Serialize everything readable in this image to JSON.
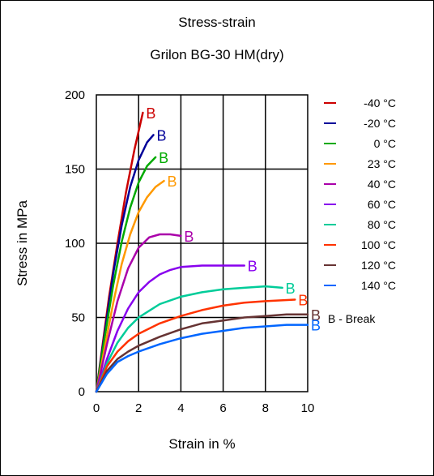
{
  "chart_data": {
    "type": "line",
    "title": "Stress-strain",
    "subtitle": "Grilon BG-30 HM(dry)",
    "xlabel": "Strain in %",
    "ylabel": "Stress in MPa",
    "xlim": [
      0,
      10
    ],
    "ylim": [
      0,
      200
    ],
    "xticks": [
      0,
      2,
      4,
      6,
      8,
      10
    ],
    "yticks": [
      0,
      50,
      100,
      150,
      200
    ],
    "grid": true,
    "legend_position": "right",
    "break_marker": "B",
    "break_note": "B - Break",
    "series": [
      {
        "name": "-40 °C",
        "color": "#cc0000",
        "x": [
          0,
          0.3,
          0.6,
          1.0,
          1.4,
          1.8,
          2.2
        ],
        "y": [
          0,
          32,
          64,
          100,
          134,
          163,
          188
        ]
      },
      {
        "name": "-20 °C",
        "color": "#000099",
        "x": [
          0,
          0.4,
          0.8,
          1.2,
          1.6,
          2.0,
          2.4,
          2.7
        ],
        "y": [
          0,
          40,
          80,
          112,
          138,
          156,
          168,
          173
        ]
      },
      {
        "name": "0 °C",
        "color": "#00aa00",
        "x": [
          0,
          0.4,
          0.8,
          1.2,
          1.6,
          2.0,
          2.4,
          2.8
        ],
        "y": [
          0,
          37,
          72,
          101,
          124,
          141,
          152,
          158
        ]
      },
      {
        "name": "23 °C",
        "color": "#ff9900",
        "x": [
          0,
          0.4,
          0.8,
          1.2,
          1.6,
          2.0,
          2.4,
          2.8,
          3.2
        ],
        "y": [
          0,
          30,
          60,
          86,
          106,
          121,
          131,
          138,
          142
        ]
      },
      {
        "name": "40 °C",
        "color": "#aa00aa",
        "x": [
          0,
          0.5,
          1.0,
          1.5,
          2.0,
          2.5,
          3.0,
          3.5,
          4.0
        ],
        "y": [
          0,
          32,
          61,
          83,
          97,
          104,
          106,
          106,
          105
        ]
      },
      {
        "name": "60 °C",
        "color": "#8800ee",
        "x": [
          0,
          0.5,
          1.0,
          1.5,
          2.0,
          2.5,
          3.0,
          3.5,
          4.0,
          5.0,
          6.0,
          7.0
        ],
        "y": [
          0,
          22,
          41,
          56,
          67,
          74,
          79,
          82,
          84,
          85,
          85,
          85
        ]
      },
      {
        "name": "80 °C",
        "color": "#00cc99",
        "x": [
          0,
          0.5,
          1.0,
          1.5,
          2.0,
          3.0,
          4.0,
          5.0,
          6.0,
          7.0,
          8.0,
          8.8
        ],
        "y": [
          0,
          19,
          33,
          43,
          50,
          59,
          64,
          67,
          69,
          70,
          71,
          70
        ]
      },
      {
        "name": "100 °C",
        "color": "#ff3300",
        "x": [
          0,
          0.5,
          1.0,
          1.5,
          2.0,
          3.0,
          4.0,
          5.0,
          6.0,
          7.0,
          8.0,
          9.4
        ],
        "y": [
          0,
          17,
          27,
          34,
          39,
          46,
          51,
          55,
          58,
          60,
          61,
          62
        ]
      },
      {
        "name": "120 °C",
        "color": "#663333",
        "x": [
          0,
          0.5,
          1.0,
          1.5,
          2.0,
          3.0,
          4.0,
          5.0,
          6.0,
          7.0,
          8.0,
          9.0,
          10.0
        ],
        "y": [
          0,
          14,
          22,
          27,
          31,
          37,
          42,
          46,
          48,
          50,
          51,
          52,
          52
        ]
      },
      {
        "name": "140 °C",
        "color": "#0066ff",
        "x": [
          0,
          0.5,
          1.0,
          1.5,
          2.0,
          3.0,
          4.0,
          5.0,
          6.0,
          7.0,
          8.0,
          9.0,
          10.0
        ],
        "y": [
          0,
          12,
          20,
          24,
          27,
          32,
          36,
          39,
          41,
          43,
          44,
          45,
          45
        ]
      }
    ]
  }
}
